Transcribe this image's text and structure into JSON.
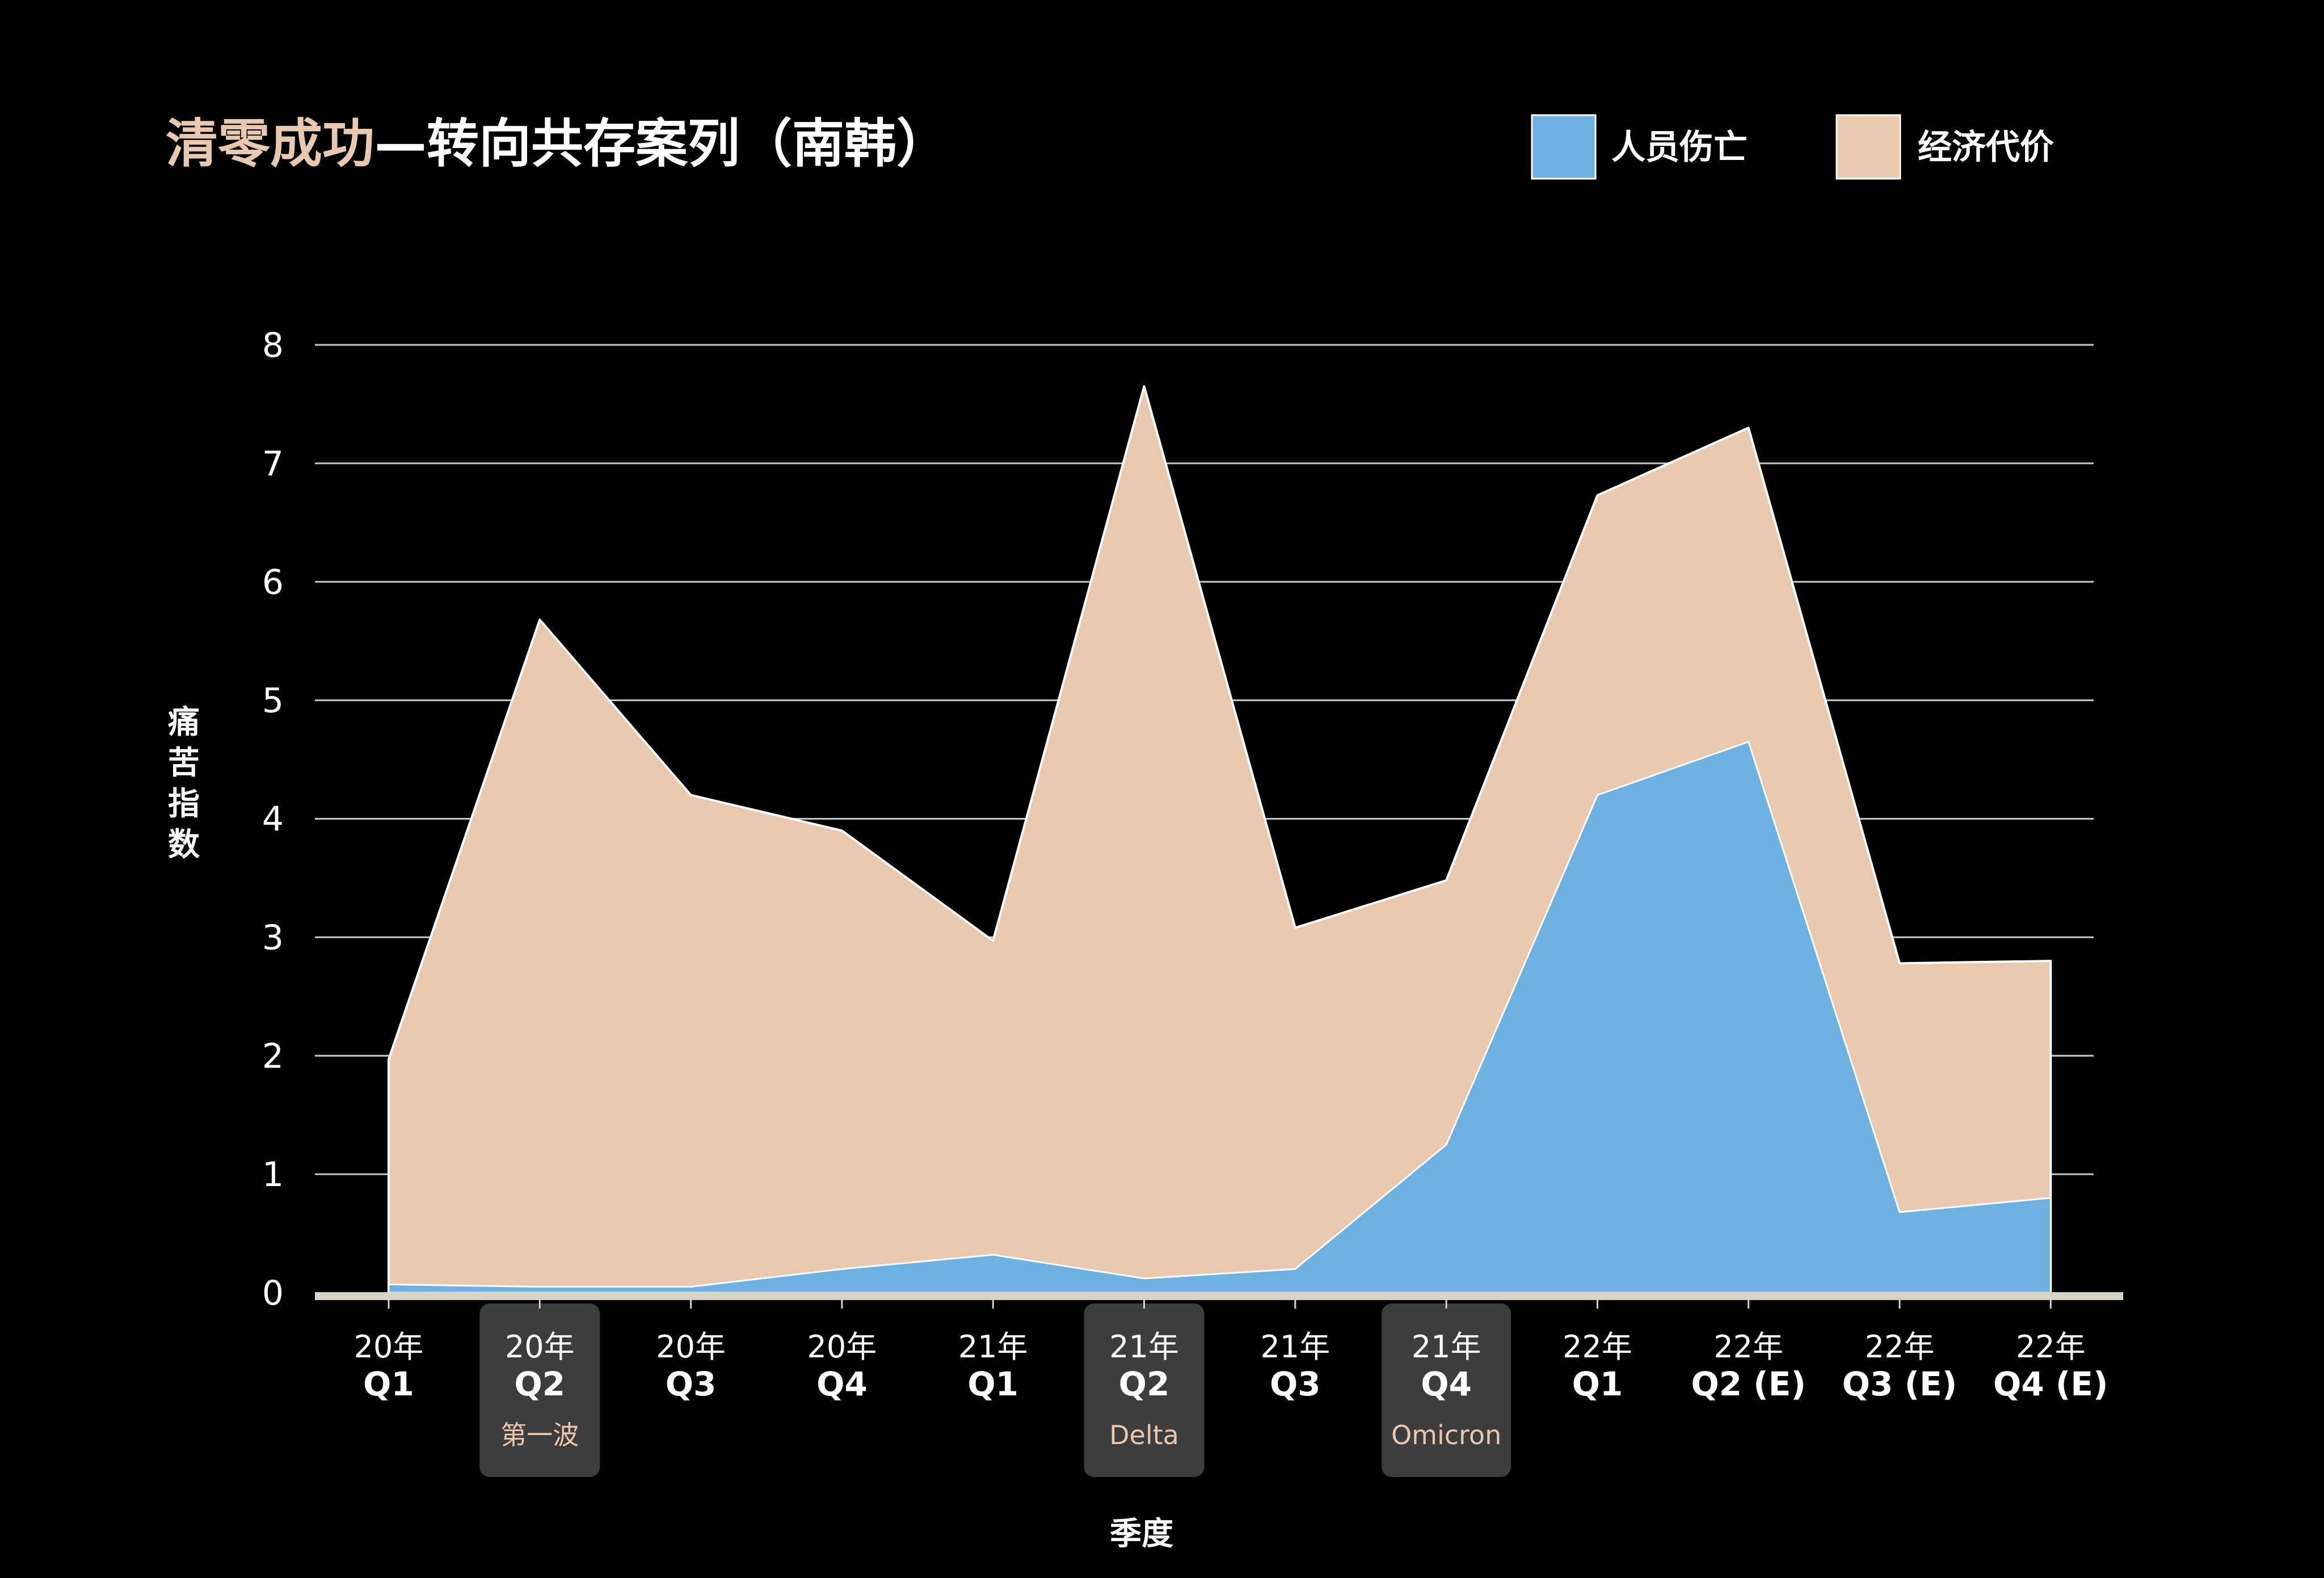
{
  "chart_data": {
    "type": "area",
    "stacked": true,
    "title": {
      "highlight": "清零成功",
      "rest": "—转向共存案列（南韩）"
    },
    "xlabel": "季度",
    "ylabel": "痛苦指数",
    "ylim": [
      0,
      8
    ],
    "yticks": [
      "0",
      "1",
      "2",
      "3",
      "4",
      "5",
      "6",
      "7",
      "8"
    ],
    "grid": true,
    "legend_position": "top-right",
    "categories": [
      {
        "year": "20年",
        "quarter": "Q1"
      },
      {
        "year": "20年",
        "quarter": "Q2"
      },
      {
        "year": "20年",
        "quarter": "Q3"
      },
      {
        "year": "20年",
        "quarter": "Q4"
      },
      {
        "year": "21年",
        "quarter": "Q1"
      },
      {
        "year": "21年",
        "quarter": "Q2"
      },
      {
        "year": "21年",
        "quarter": "Q3"
      },
      {
        "year": "21年",
        "quarter": "Q4"
      },
      {
        "year": "22年",
        "quarter": "Q1"
      },
      {
        "year": "22年",
        "quarter": "Q2 (E)"
      },
      {
        "year": "22年",
        "quarter": "Q3 (E)"
      },
      {
        "year": "22年",
        "quarter": "Q4 (E)"
      }
    ],
    "series": [
      {
        "name": "人员伤亡",
        "color": "#6eb0e0",
        "values": [
          0.07,
          0.05,
          0.05,
          0.2,
          0.32,
          0.12,
          0.2,
          1.25,
          4.2,
          4.65,
          0.68,
          0.8
        ]
      },
      {
        "name": "经济代价",
        "color": "#e8c8ae",
        "values": [
          1.9,
          5.63,
          4.15,
          3.7,
          2.65,
          7.53,
          2.88,
          2.23,
          2.53,
          2.65,
          2.1,
          2.0
        ]
      }
    ],
    "annotations": [
      {
        "index": 1,
        "label": "第一波"
      },
      {
        "index": 5,
        "label": "Delta"
      },
      {
        "index": 7,
        "label": "Omicron"
      }
    ]
  },
  "colors": {
    "background": "#000000",
    "title_highlight": "#e8c8ae",
    "title_rest": "#ffffff",
    "gridline": "#c8c8c8",
    "baseline": "#d6d2c4",
    "outline": "#ffffff",
    "annotation_box": "#3d3d3d",
    "annotation_text": "#e8c8ae",
    "text": "#ffffff"
  }
}
